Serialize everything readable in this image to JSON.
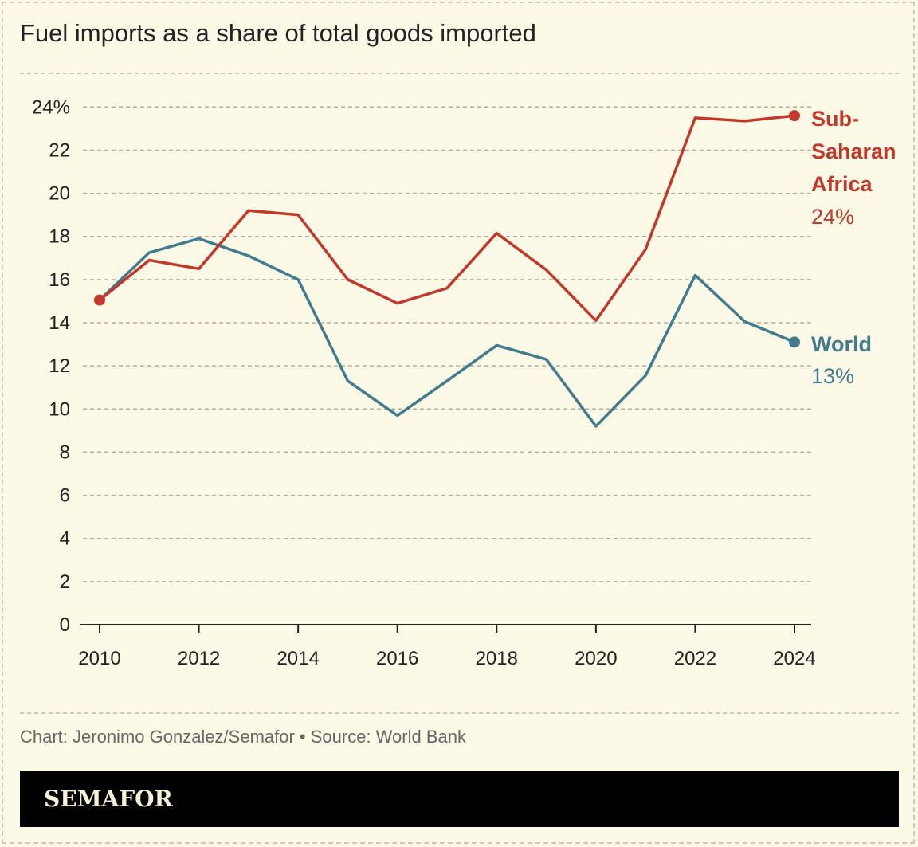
{
  "chart_data": {
    "type": "line",
    "title": "Fuel imports as a share of total goods imported",
    "x": [
      2010,
      2011,
      2012,
      2013,
      2014,
      2015,
      2016,
      2017,
      2018,
      2019,
      2020,
      2021,
      2022,
      2023,
      2024
    ],
    "xticks": [
      "2010",
      "2012",
      "2014",
      "2016",
      "2018",
      "2020",
      "2022",
      "2024"
    ],
    "yticks": [
      "0",
      "2",
      "4",
      "6",
      "8",
      "10",
      "12",
      "14",
      "16",
      "18",
      "20",
      "22",
      "24%"
    ],
    "ylim": [
      0,
      24
    ],
    "grid": true,
    "series": [
      {
        "name": "Sub-Saharan Africa",
        "name_lines": [
          "Sub-",
          "Saharan",
          "Africa"
        ],
        "end_label": "24%",
        "color": "#c0392b",
        "values": [
          15.05,
          16.9,
          16.5,
          19.2,
          19.0,
          16.0,
          14.9,
          15.6,
          18.15,
          16.45,
          14.1,
          17.4,
          23.5,
          23.35,
          23.6
        ]
      },
      {
        "name": "World",
        "name_lines": [
          "World"
        ],
        "end_label": "13%",
        "color": "#417b8e",
        "values": [
          15.05,
          17.25,
          17.9,
          17.1,
          16.0,
          11.3,
          9.7,
          11.3,
          12.95,
          12.3,
          9.2,
          11.55,
          16.2,
          14.05,
          13.1
        ]
      }
    ]
  },
  "footer": {
    "credit": "Chart: Jeronimo Gonzalez/Semafor • Source: World Bank",
    "brand": "SEMAFOR"
  }
}
